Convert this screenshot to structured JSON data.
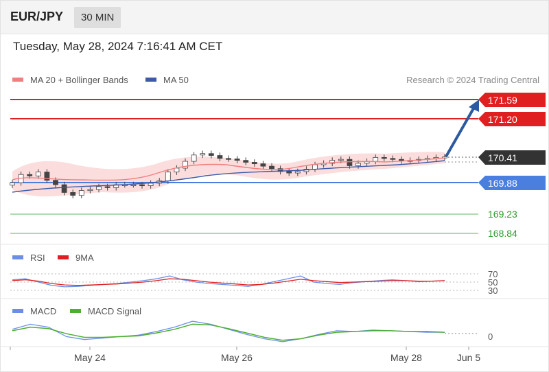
{
  "header": {
    "symbol": "EUR/JPY",
    "timeframe": "30 MIN",
    "datetime": "Tuesday, May 28, 2024 7:16:41 AM CET"
  },
  "legend": {
    "ma20": "MA 20 + Bollinger Bands",
    "ma50": "MA 50",
    "credit": "Research © 2024 Trading Central"
  },
  "colors": {
    "resistance": "#e02020",
    "support": "#4a7fe0",
    "target": "#2e9b2e",
    "price_candle": "#444444",
    "bollinger_fill": "#fbd9d9",
    "ma20": "#f08080",
    "ma50": "#3c5aa8",
    "arrow": "#2c5aa0",
    "rsi": "#6b8fe8",
    "rsi_ma": "#e02020",
    "macd": "#6b8fe8",
    "macd_signal": "#4caf30"
  },
  "chart_data": [
    {
      "type": "line",
      "panel": "price",
      "x_labels": [
        "May 24",
        "May 26",
        "May 28",
        "Jun 5"
      ],
      "ylim": [
        168.6,
        171.9
      ],
      "levels": [
        {
          "value": 171.59,
          "label": "171.59",
          "kind": "resistance"
        },
        {
          "value": 171.2,
          "label": "171.20",
          "kind": "resistance"
        },
        {
          "value": 170.41,
          "label": "170.41",
          "kind": "current"
        },
        {
          "value": 169.88,
          "label": "169.88",
          "kind": "support"
        },
        {
          "value": 169.23,
          "label": "169.23",
          "kind": "target"
        },
        {
          "value": 168.84,
          "label": "168.84",
          "kind": "target"
        }
      ],
      "close_series": [
        169.88,
        170.05,
        170.02,
        170.1,
        169.93,
        169.84,
        169.68,
        169.62,
        169.72,
        169.74,
        169.8,
        169.78,
        169.84,
        169.84,
        169.84,
        169.82,
        169.87,
        169.92,
        170.1,
        170.18,
        170.32,
        170.45,
        170.48,
        170.44,
        170.38,
        170.37,
        170.34,
        170.3,
        170.27,
        170.22,
        170.17,
        170.11,
        170.08,
        170.11,
        170.16,
        170.25,
        170.28,
        170.34,
        170.36,
        170.23,
        170.28,
        170.32,
        170.4,
        170.38,
        170.36,
        170.33,
        170.34,
        170.36,
        170.38,
        170.4,
        170.41
      ],
      "ma50_series": [
        169.76,
        169.77,
        169.79,
        169.8,
        169.81,
        169.81,
        169.82,
        169.82,
        169.83,
        169.84,
        169.85,
        169.87,
        169.89,
        169.91,
        169.94,
        169.97,
        170.0,
        170.03,
        170.06,
        170.08,
        170.1,
        170.12,
        170.13,
        170.14,
        170.15,
        170.16,
        170.18,
        170.2,
        170.22,
        170.24,
        170.26,
        170.28,
        170.3,
        170.32,
        170.34,
        170.36,
        170.38
      ],
      "arrow_target": 171.59
    },
    {
      "type": "line",
      "panel": "rsi",
      "series": [
        {
          "name": "RSI",
          "values": [
            60,
            62,
            55,
            48,
            45,
            46,
            48,
            50,
            52,
            55,
            58,
            62,
            68,
            60,
            55,
            52,
            50,
            48,
            46,
            50,
            56,
            62,
            68,
            55,
            52,
            50,
            54,
            56,
            58,
            60,
            58,
            56,
            57,
            58
          ]
        },
        {
          "name": "9MA",
          "values": [
            58,
            60,
            57,
            52,
            49,
            48,
            49,
            50,
            51,
            53,
            55,
            58,
            62,
            61,
            58,
            55,
            53,
            51,
            49,
            50,
            53,
            57,
            61,
            58,
            56,
            54,
            55,
            56,
            57,
            58,
            58,
            57,
            57,
            58
          ]
        }
      ],
      "levels": [
        70,
        50,
        30
      ],
      "tick_labels": [
        "70",
        "50",
        "30"
      ]
    },
    {
      "type": "line",
      "panel": "macd",
      "series": [
        {
          "name": "MACD",
          "values": [
            0.05,
            0.12,
            0.08,
            -0.05,
            -0.09,
            -0.07,
            -0.05,
            -0.03,
            0.02,
            0.08,
            0.16,
            0.12,
            0.05,
            -0.02,
            -0.08,
            -0.12,
            -0.08,
            -0.02,
            0.03,
            0.02,
            0.04,
            0.03,
            0.02,
            0.01,
            0.01
          ]
        },
        {
          "name": "MACD Signal",
          "values": [
            0.03,
            0.08,
            0.06,
            -0.01,
            -0.06,
            -0.06,
            -0.05,
            -0.04,
            0.0,
            0.05,
            0.12,
            0.11,
            0.06,
            0.0,
            -0.06,
            -0.1,
            -0.08,
            -0.03,
            0.01,
            0.02,
            0.03,
            0.03,
            0.02,
            0.02,
            0.01
          ]
        }
      ],
      "tick_labels": [
        "0"
      ]
    }
  ],
  "ticks": {
    "rsi_70": "70",
    "rsi_50": "50",
    "rsi_30": "30",
    "macd_0": "0"
  },
  "xaxis": {
    "may24": "May 24",
    "may26": "May 26",
    "may28": "May 28",
    "jun5": "Jun 5"
  }
}
